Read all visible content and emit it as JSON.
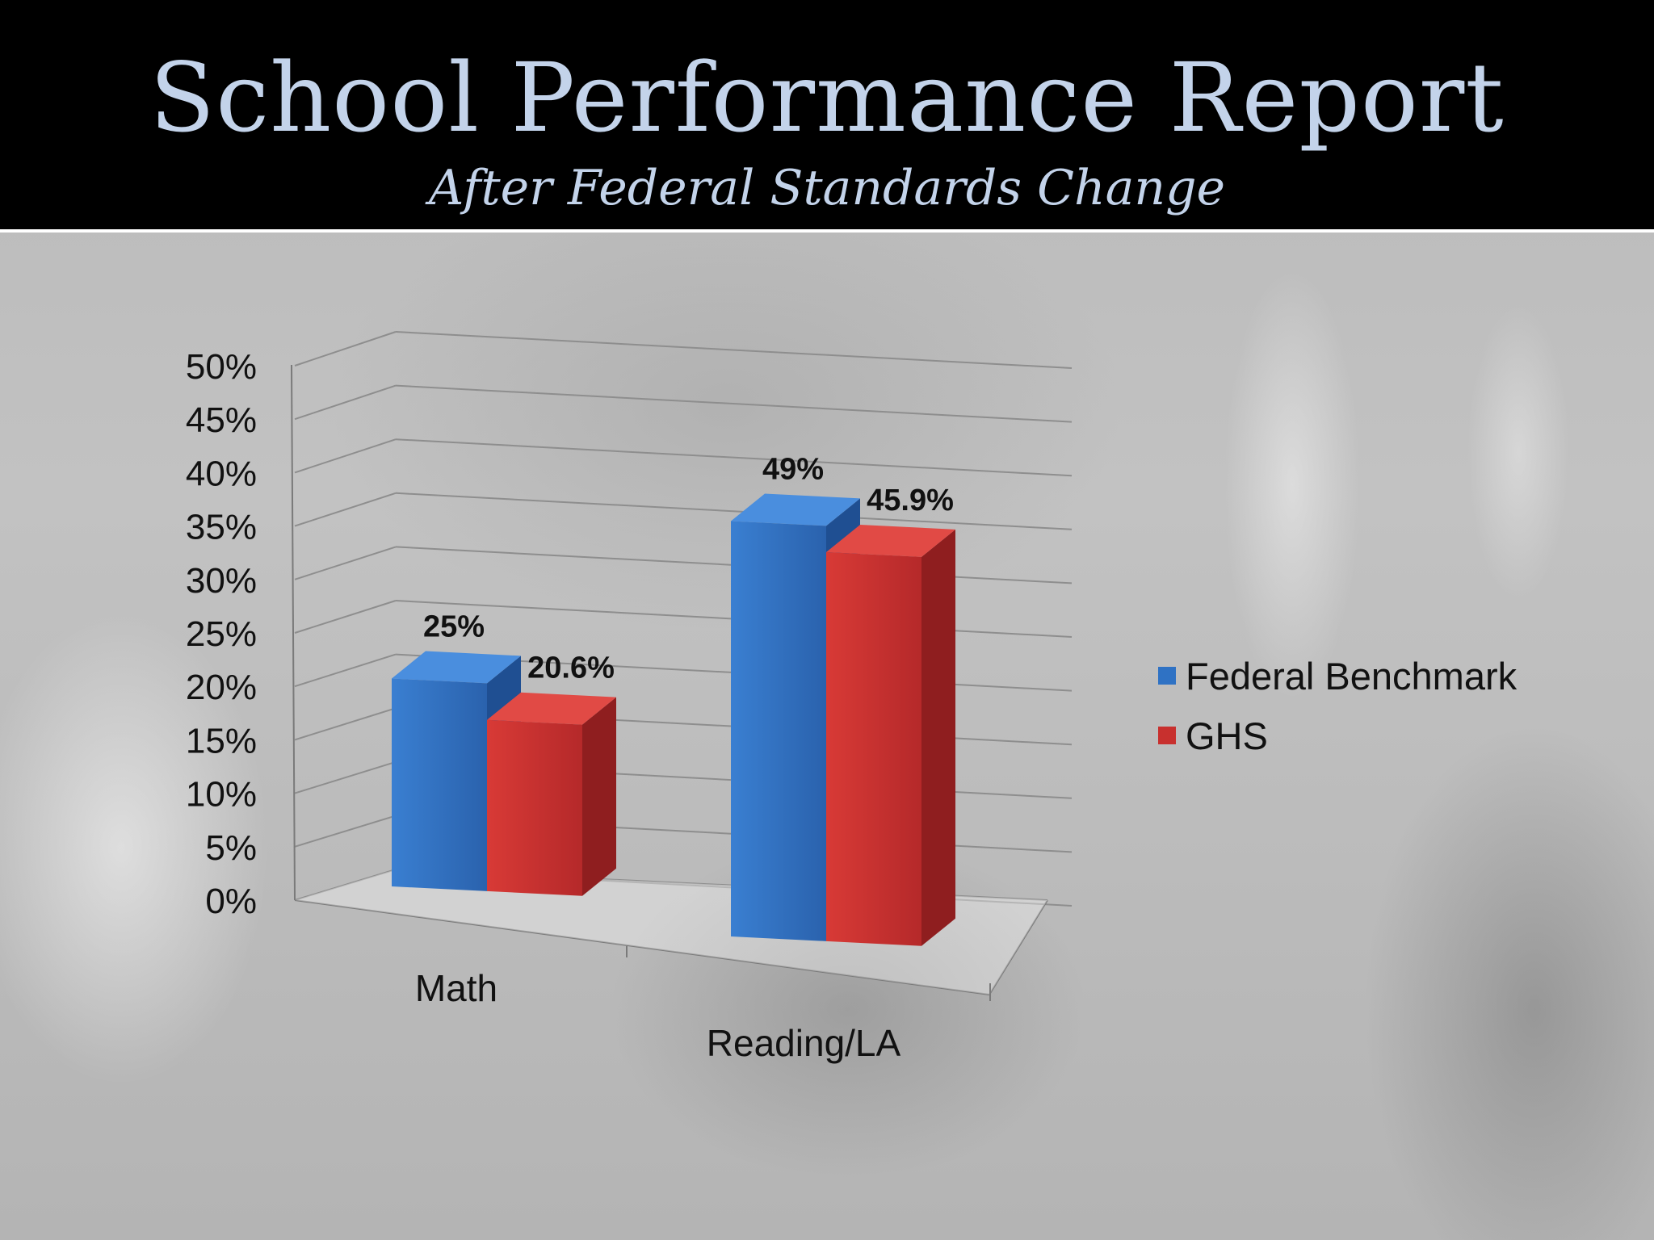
{
  "header": {
    "title": "School Performance Report",
    "subtitle": "After Federal Standards Change"
  },
  "colors": {
    "header_bg": "#000000",
    "title_text": "#c3d3ea",
    "federal_benchmark": "#2f72c4",
    "ghs": "#c8302e"
  },
  "chart_data": {
    "type": "bar",
    "style": "3d-clustered-column",
    "categories": [
      "Math",
      "Reading/LA"
    ],
    "series": [
      {
        "name": "Federal Benchmark",
        "values": [
          25,
          49
        ],
        "labels": [
          "25%",
          "49%"
        ],
        "color": "#2f72c4"
      },
      {
        "name": "GHS",
        "values": [
          20.6,
          45.9
        ],
        "labels": [
          "20.6%",
          "45.9%"
        ],
        "color": "#c8302e"
      }
    ],
    "y_ticks": [
      "0%",
      "5%",
      "10%",
      "15%",
      "20%",
      "25%",
      "30%",
      "35%",
      "40%",
      "45%",
      "50%"
    ],
    "ylim": [
      0,
      50
    ],
    "grid": true,
    "legend_position": "right"
  }
}
